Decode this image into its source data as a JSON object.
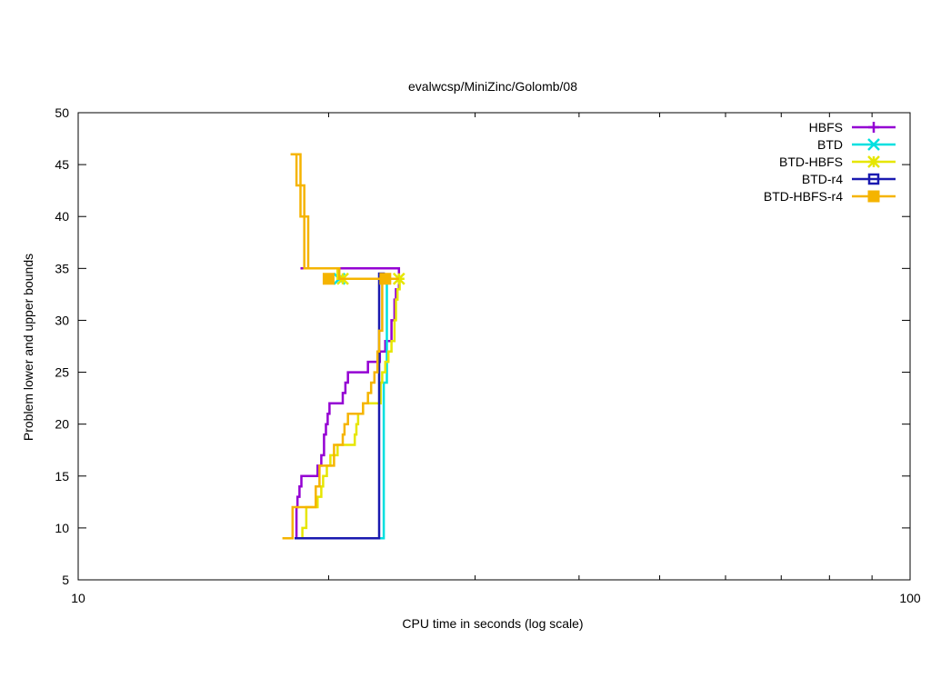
{
  "chart_data": {
    "type": "line",
    "title": "evalwcsp/MiniZinc/Golomb/08",
    "xlabel": "CPU time in seconds (log scale)",
    "ylabel": "Problem lower and upper bounds",
    "xscale": "log",
    "xlim": [
      10,
      100
    ],
    "ylim": [
      5,
      50
    ],
    "x_ticks": [
      10,
      100
    ],
    "x_tick_labels": [
      "10",
      "100"
    ],
    "y_ticks": [
      5,
      10,
      15,
      20,
      25,
      30,
      35,
      40,
      45,
      50
    ],
    "y_tick_labels": [
      "5",
      "10",
      "15",
      "20",
      "25",
      "30",
      "35",
      "40",
      "45",
      "50"
    ],
    "grid": false,
    "legend_position": "top-right",
    "series": [
      {
        "name": "HBFS",
        "color": "#9400d3",
        "marker": "plus",
        "lower": [
          [
            18.3,
            9
          ],
          [
            18.3,
            12
          ],
          [
            18.35,
            12
          ],
          [
            18.35,
            13
          ],
          [
            18.45,
            13
          ],
          [
            18.45,
            14
          ],
          [
            18.55,
            14
          ],
          [
            18.55,
            15
          ],
          [
            19.4,
            15
          ],
          [
            19.4,
            16
          ],
          [
            19.6,
            16
          ],
          [
            19.6,
            17
          ],
          [
            19.75,
            17
          ],
          [
            19.75,
            19
          ],
          [
            19.85,
            19
          ],
          [
            19.85,
            20
          ],
          [
            19.95,
            20
          ],
          [
            19.95,
            21
          ],
          [
            20.05,
            21
          ],
          [
            20.05,
            22
          ],
          [
            20.8,
            22
          ],
          [
            20.8,
            23
          ],
          [
            20.95,
            23
          ],
          [
            20.95,
            24
          ],
          [
            21.1,
            24
          ],
          [
            21.1,
            25
          ],
          [
            22.3,
            25
          ],
          [
            22.3,
            26
          ],
          [
            23.05,
            26
          ],
          [
            23.05,
            27
          ],
          [
            23.4,
            27
          ],
          [
            23.4,
            28
          ],
          [
            23.8,
            28
          ],
          [
            23.8,
            30
          ],
          [
            24.0,
            30
          ],
          [
            24.0,
            32
          ],
          [
            24.1,
            32
          ],
          [
            24.1,
            33
          ],
          [
            24.3,
            33
          ],
          [
            24.3,
            34
          ],
          [
            24.5,
            34
          ]
        ],
        "upper": [
          [
            18.5,
            35
          ],
          [
            24.3,
            35
          ],
          [
            24.3,
            34
          ]
        ],
        "markers": []
      },
      {
        "name": "BTD",
        "color": "#00e0e0",
        "marker": "x",
        "lower": [
          [
            18.4,
            9
          ],
          [
            23.3,
            9
          ],
          [
            23.3,
            24
          ],
          [
            23.5,
            24
          ],
          [
            23.5,
            34
          ]
        ],
        "upper": [],
        "markers": [
          [
            20.6,
            34
          ]
        ]
      },
      {
        "name": "BTD-HBFS",
        "color": "#e6e600",
        "marker": "star",
        "lower": [
          [
            18.2,
            9
          ],
          [
            18.6,
            9
          ],
          [
            18.6,
            10
          ],
          [
            18.8,
            10
          ],
          [
            18.8,
            12
          ],
          [
            19.4,
            12
          ],
          [
            19.4,
            13
          ],
          [
            19.6,
            13
          ],
          [
            19.6,
            14
          ],
          [
            19.7,
            14
          ],
          [
            19.7,
            15
          ],
          [
            19.9,
            15
          ],
          [
            19.9,
            16
          ],
          [
            20.1,
            16
          ],
          [
            20.1,
            17
          ],
          [
            20.5,
            17
          ],
          [
            20.5,
            18
          ],
          [
            21.5,
            18
          ],
          [
            21.5,
            19
          ],
          [
            21.6,
            19
          ],
          [
            21.6,
            20
          ],
          [
            21.7,
            20
          ],
          [
            21.7,
            21
          ],
          [
            22.0,
            21
          ],
          [
            22.0,
            22
          ],
          [
            23.1,
            22
          ],
          [
            23.1,
            24
          ],
          [
            23.2,
            24
          ],
          [
            23.2,
            25
          ],
          [
            23.4,
            25
          ],
          [
            23.4,
            26
          ],
          [
            23.6,
            26
          ],
          [
            23.6,
            27
          ],
          [
            23.8,
            27
          ],
          [
            23.8,
            28
          ],
          [
            24.0,
            28
          ],
          [
            24.0,
            30
          ],
          [
            24.1,
            30
          ],
          [
            24.1,
            32
          ],
          [
            24.2,
            32
          ],
          [
            24.2,
            33
          ],
          [
            24.35,
            33
          ],
          [
            24.35,
            34
          ]
        ],
        "upper": [
          [
            20.5,
            35
          ],
          [
            20.5,
            34
          ],
          [
            24.35,
            34
          ]
        ],
        "markers": [
          [
            20.8,
            34
          ],
          [
            24.3,
            34
          ]
        ]
      },
      {
        "name": "BTD-r4",
        "color": "#1a1ab0",
        "marker": "box",
        "lower": [
          [
            18.2,
            9
          ],
          [
            23.0,
            9
          ],
          [
            23.0,
            34.5
          ],
          [
            23.3,
            34.5
          ],
          [
            23.3,
            34
          ]
        ],
        "upper": [],
        "markers": []
      },
      {
        "name": "BTD-HBFS-r4",
        "color": "#f5b400",
        "marker": "filled-box",
        "lower": [
          [
            17.6,
            9
          ],
          [
            18.1,
            9
          ],
          [
            18.1,
            12
          ],
          [
            19.3,
            12
          ],
          [
            19.3,
            14
          ],
          [
            19.5,
            14
          ],
          [
            19.5,
            16
          ],
          [
            20.3,
            16
          ],
          [
            20.3,
            17
          ],
          [
            20.3,
            18
          ],
          [
            20.8,
            18
          ],
          [
            20.8,
            19
          ],
          [
            20.9,
            19
          ],
          [
            20.9,
            20
          ],
          [
            21.1,
            20
          ],
          [
            21.1,
            21
          ],
          [
            22.0,
            21
          ],
          [
            22.0,
            22
          ],
          [
            22.3,
            22
          ],
          [
            22.3,
            23
          ],
          [
            22.5,
            23
          ],
          [
            22.5,
            24
          ],
          [
            22.7,
            24
          ],
          [
            22.7,
            25
          ],
          [
            22.9,
            25
          ],
          [
            22.9,
            27
          ],
          [
            23.0,
            27
          ],
          [
            23.0,
            29
          ],
          [
            23.2,
            29
          ],
          [
            23.2,
            34
          ],
          [
            24.3,
            34
          ]
        ],
        "upper": [
          [
            18.0,
            46
          ],
          [
            18.3,
            46
          ],
          [
            18.3,
            43
          ],
          [
            18.5,
            43
          ],
          [
            18.5,
            40
          ],
          [
            18.7,
            40
          ],
          [
            18.7,
            35
          ],
          [
            20.6,
            35
          ],
          [
            20.6,
            34
          ],
          [
            24.3,
            34
          ]
        ],
        "upper2": [
          [
            18.3,
            46
          ],
          [
            18.5,
            46
          ],
          [
            18.5,
            43
          ],
          [
            18.7,
            43
          ],
          [
            18.7,
            40
          ],
          [
            18.9,
            40
          ],
          [
            18.9,
            35
          ]
        ],
        "markers": [
          [
            20.0,
            34
          ],
          [
            23.4,
            34
          ]
        ]
      }
    ]
  }
}
